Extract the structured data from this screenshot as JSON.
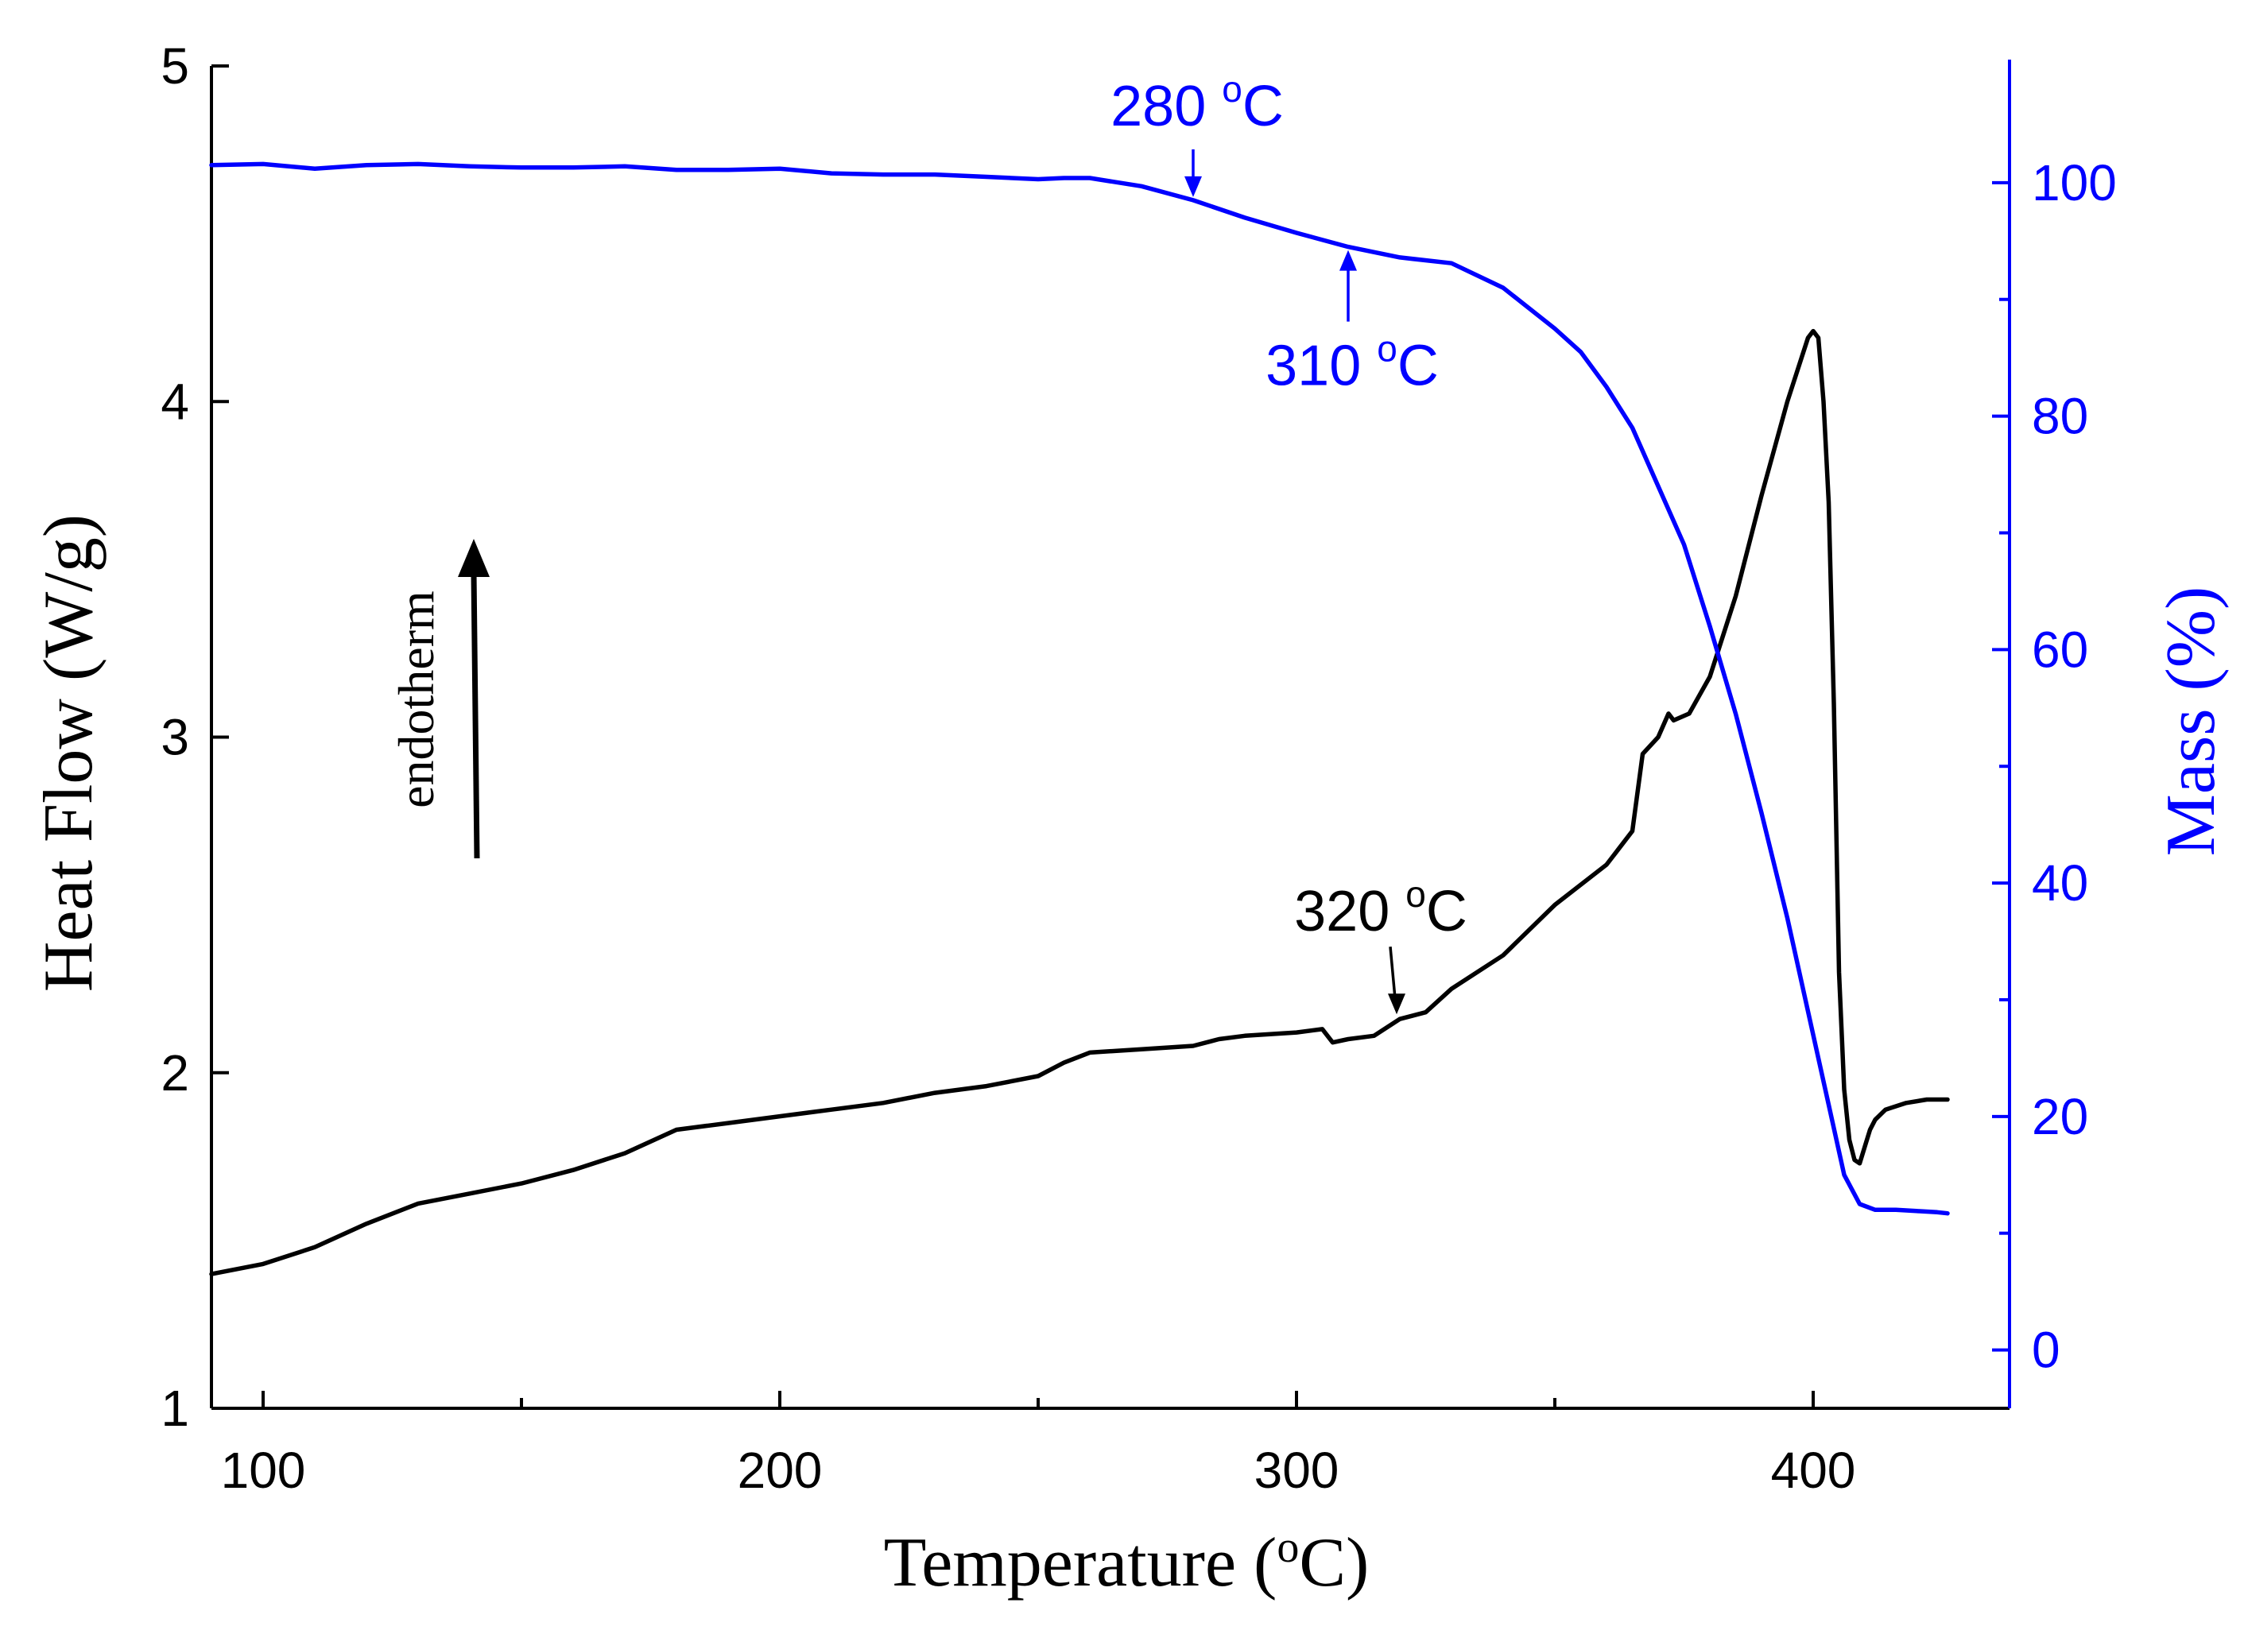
{
  "chart_data": {
    "type": "line",
    "x_axis": {
      "label_main": "Temperature (",
      "label_sup": "o",
      "label_end": "C)",
      "range": [
        90,
        438
      ],
      "major_ticks": [
        100,
        200,
        300,
        400
      ],
      "minor_ticks": [
        150,
        250,
        350
      ],
      "tick_labels": [
        "100",
        "200",
        "300",
        "400"
      ]
    },
    "y_axis_left": {
      "label": "Heat Flow (W/g)",
      "range": [
        1,
        5
      ],
      "ticks": [
        1,
        2,
        3,
        4,
        5
      ],
      "tick_labels": [
        "1",
        "2",
        "3",
        "4",
        "5"
      ],
      "color": "#000000"
    },
    "y_axis_right": {
      "label": "Mass (%)",
      "range": [
        -5,
        110
      ],
      "ticks": [
        0,
        20,
        40,
        60,
        80,
        100
      ],
      "tick_labels": [
        "0",
        "20",
        "40",
        "60",
        "80",
        "100"
      ],
      "color": "#0000ff"
    },
    "series": [
      {
        "name": "Heat Flow",
        "axis": "left",
        "color": "#000000",
        "x": [
          90,
          100,
          110,
          120,
          130,
          140,
          150,
          160,
          170,
          180,
          190,
          200,
          210,
          220,
          230,
          240,
          250,
          255,
          260,
          270,
          280,
          285,
          290,
          300,
          305,
          307,
          310,
          315,
          320,
          325,
          330,
          340,
          350,
          360,
          365,
          367,
          370,
          372,
          373,
          376,
          380,
          385,
          390,
          395,
          399,
          400,
          401,
          402,
          403,
          404,
          405,
          406,
          407,
          408,
          409,
          410,
          411,
          412,
          414,
          418,
          422,
          426
        ],
        "y": [
          1.4,
          1.43,
          1.48,
          1.55,
          1.61,
          1.64,
          1.67,
          1.71,
          1.76,
          1.83,
          1.85,
          1.87,
          1.89,
          1.91,
          1.94,
          1.96,
          1.99,
          2.03,
          2.06,
          2.07,
          2.08,
          2.1,
          2.11,
          2.12,
          2.13,
          2.09,
          2.1,
          2.11,
          2.16,
          2.18,
          2.25,
          2.35,
          2.5,
          2.62,
          2.72,
          2.95,
          3.0,
          3.07,
          3.05,
          3.07,
          3.18,
          3.42,
          3.72,
          4.0,
          4.19,
          4.21,
          4.19,
          4.0,
          3.7,
          3.1,
          2.3,
          1.95,
          1.8,
          1.74,
          1.73,
          1.78,
          1.83,
          1.86,
          1.89,
          1.91,
          1.92,
          1.92
        ]
      },
      {
        "name": "Mass",
        "axis": "right",
        "color": "#0000ff",
        "x": [
          90,
          100,
          110,
          120,
          130,
          140,
          150,
          160,
          170,
          180,
          190,
          200,
          210,
          220,
          230,
          240,
          250,
          255,
          260,
          270,
          280,
          290,
          300,
          310,
          320,
          330,
          340,
          350,
          355,
          360,
          365,
          370,
          375,
          380,
          385,
          390,
          395,
          400,
          403,
          406,
          409,
          412,
          416,
          420,
          424,
          426
        ],
        "y": [
          101.5,
          101.6,
          101.2,
          101.5,
          101.6,
          101.4,
          101.3,
          101.3,
          101.4,
          101.1,
          101.1,
          101.2,
          100.8,
          100.7,
          100.7,
          100.5,
          100.3,
          100.4,
          100.4,
          99.7,
          98.5,
          97.0,
          95.7,
          94.5,
          93.6,
          93.1,
          91.0,
          87.5,
          85.5,
          82.5,
          79.0,
          74.0,
          69.0,
          62.0,
          54.5,
          46.0,
          37.0,
          27.0,
          21.0,
          15.0,
          12.5,
          12.0,
          12.0,
          11.9,
          11.8,
          11.7
        ]
      }
    ],
    "annotations": [
      {
        "text": "280 ",
        "sup": "o",
        "end": "C",
        "x": 280,
        "axis": "right",
        "color": "#0000ff"
      },
      {
        "text": "310 ",
        "sup": "o",
        "end": "C",
        "x": 310,
        "axis": "right",
        "color": "#0000ff"
      },
      {
        "text": "320 ",
        "sup": "o",
        "end": "C",
        "x": 320,
        "axis": "left",
        "color": "#000000"
      },
      {
        "text": "endotherm",
        "color": "#000000"
      }
    ]
  }
}
